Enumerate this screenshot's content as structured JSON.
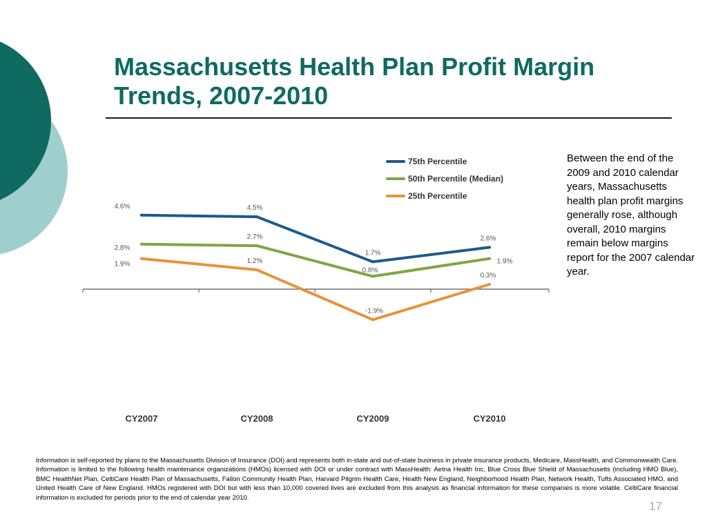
{
  "slide": {
    "title": "Massachusetts Health Plan Profit Margin Trends, 2007-2010",
    "side_note": "Between the end of the 2009 and 2010 calendar years, Massachusetts health plan profit margins generally rose, although overall, 2010 margins remain below margins report for the 2007 calendar year.",
    "footnote": "Information is self-reported by plans to the Massachusetts Division of Insurance (DOI) and represents both in-state and out-of-state business in private insurance products, Medicare, MassHealth, and Commonwealth Care. Information is limited to the following health maintenance organizations (HMOs) licensed with DOI or under contract with MassHealth: Aetna Health Inc, Blue Cross Blue Shield of Massachusetts (including HMO Blue), BMC HealthNet Plan, CeltiCare Health Plan of Massachusetts, Fallon Community Health Plan, Harvard Pilgrim Health Care, Health New England, Neighborhood Health Plan, Network Health, Tufts Associated HMO, and United Health Care of New England. HMOs registered with DOI but with less than 10,000 covered lives are excluded from this analysis as financial information for these companies is more volatile. CeltiCare financial information is excluded for periods prior to the end of calendar year 2010.",
    "page_number": "17"
  },
  "colors": {
    "title": "#0f6a62",
    "circle_dark": "#0f6a62",
    "circle_light": "#9fcfcc"
  },
  "chart_data": {
    "type": "line",
    "categories": [
      "CY2007",
      "CY2008",
      "CY2009",
      "CY2010"
    ],
    "series": [
      {
        "name": "75th Percentile",
        "color": "#1c5a8c",
        "values": [
          4.6,
          4.5,
          1.7,
          2.6
        ],
        "labels": [
          "4.6%",
          "4.5%",
          "1.7%",
          "2.6%"
        ]
      },
      {
        "name": "50th Percentile (Median)",
        "color": "#7fa640",
        "values": [
          2.8,
          2.7,
          0.8,
          1.9
        ],
        "labels": [
          "2.8%",
          "2.7%",
          "0.8%",
          "1.9%"
        ]
      },
      {
        "name": "25th Percentile",
        "color": "#e8923a",
        "values": [
          1.9,
          1.2,
          -1.9,
          0.3
        ],
        "labels": [
          "1.9%",
          "1.2%",
          "-1.9%",
          "0.3%"
        ]
      }
    ],
    "legend_position": "top-right",
    "grid": false
  }
}
